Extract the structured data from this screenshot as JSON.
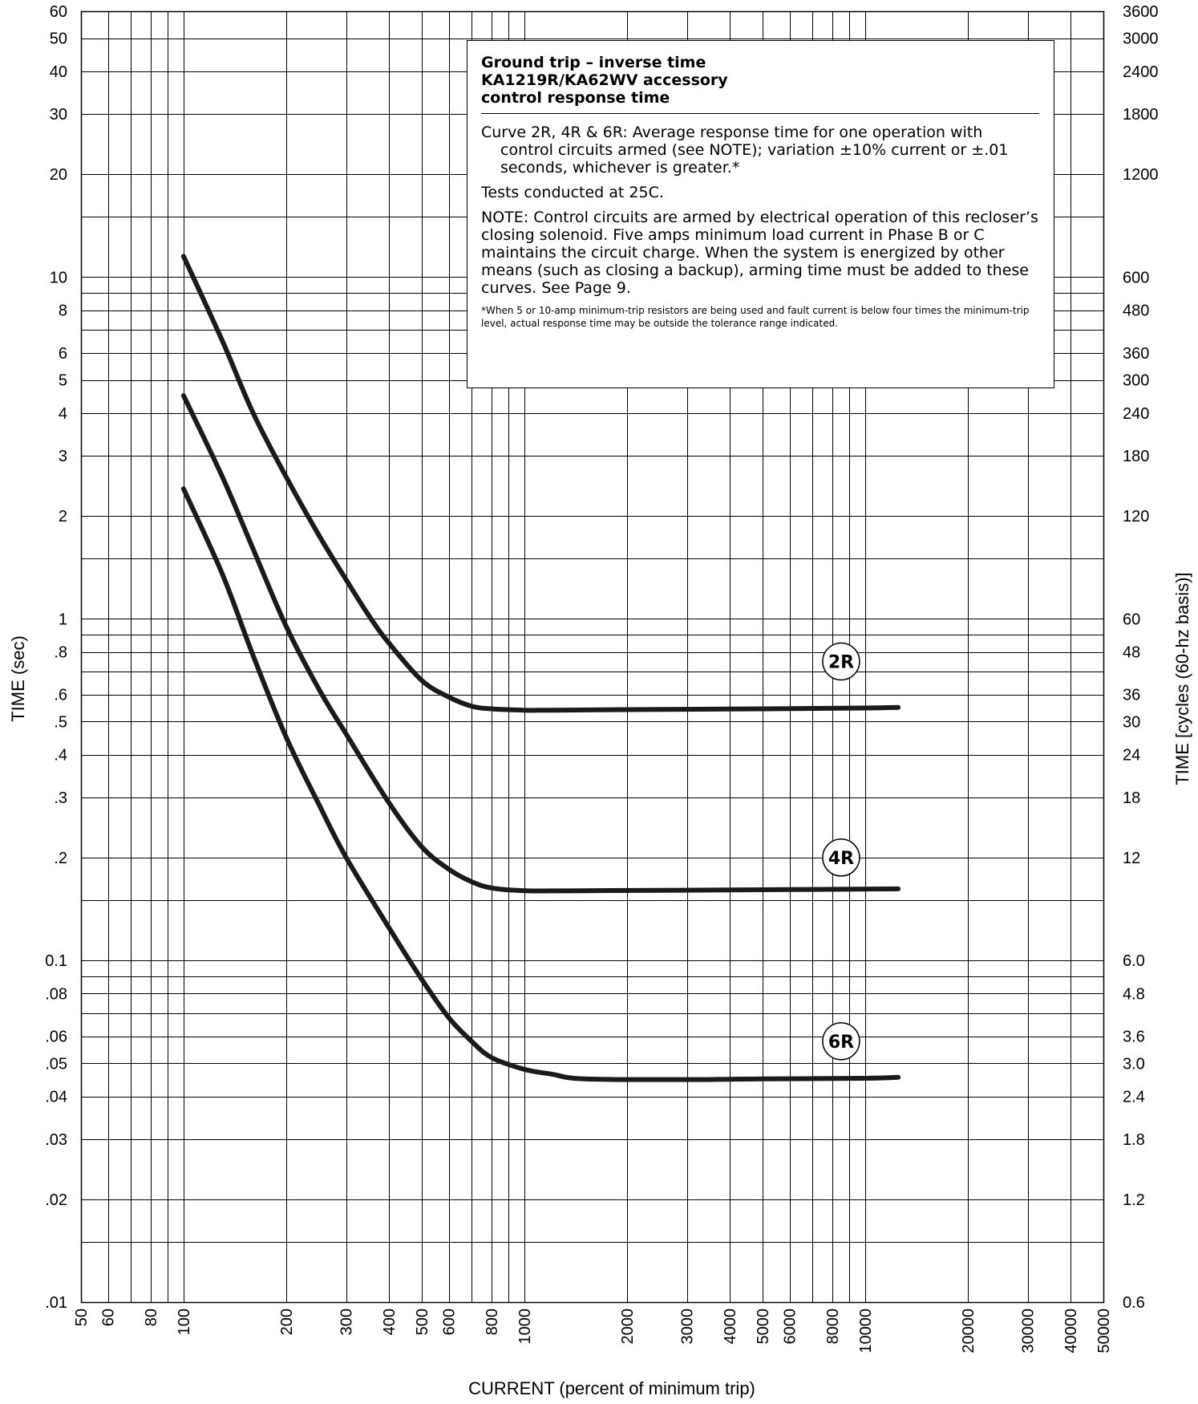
{
  "chart_data": {
    "type": "line",
    "x_scale": "log",
    "y_scale": "log",
    "xlim": [
      50,
      50000
    ],
    "ylim": [
      0.01,
      60
    ],
    "grid": true,
    "xlabel": "CURRENT (percent of minimum trip)",
    "ylabel": "TIME (sec)",
    "ylabel_right": "TIME [cycles (60-hz basis)]",
    "x_ticks": [
      {
        "v": 50,
        "label": "50"
      },
      {
        "v": 60,
        "label": "60"
      },
      {
        "v": 80,
        "label": "80"
      },
      {
        "v": 100,
        "label": "100"
      },
      {
        "v": 200,
        "label": "200"
      },
      {
        "v": 300,
        "label": "300"
      },
      {
        "v": 400,
        "label": "400"
      },
      {
        "v": 500,
        "label": "500"
      },
      {
        "v": 600,
        "label": "600"
      },
      {
        "v": 800,
        "label": "800"
      },
      {
        "v": 1000,
        "label": "1000"
      },
      {
        "v": 2000,
        "label": "2000"
      },
      {
        "v": 3000,
        "label": "3000"
      },
      {
        "v": 4000,
        "label": "4000"
      },
      {
        "v": 5000,
        "label": "5000"
      },
      {
        "v": 6000,
        "label": "6000"
      },
      {
        "v": 8000,
        "label": "8000"
      },
      {
        "v": 10000,
        "label": "10000"
      },
      {
        "v": 20000,
        "label": "20000"
      },
      {
        "v": 30000,
        "label": "30000"
      },
      {
        "v": 40000,
        "label": "40000"
      },
      {
        "v": 50000,
        "label": "50000"
      }
    ],
    "y_ticks_left": [
      {
        "v": 60,
        "label": "60"
      },
      {
        "v": 50,
        "label": "50"
      },
      {
        "v": 40,
        "label": "40"
      },
      {
        "v": 30,
        "label": "30"
      },
      {
        "v": 20,
        "label": "20"
      },
      {
        "v": 10,
        "label": "10"
      },
      {
        "v": 8,
        "label": "8"
      },
      {
        "v": 6,
        "label": "6"
      },
      {
        "v": 5,
        "label": "5"
      },
      {
        "v": 4,
        "label": "4"
      },
      {
        "v": 3,
        "label": "3"
      },
      {
        "v": 2,
        "label": "2"
      },
      {
        "v": 1,
        "label": "1"
      },
      {
        "v": 0.8,
        "label": ".8"
      },
      {
        "v": 0.6,
        "label": ".6"
      },
      {
        "v": 0.5,
        "label": ".5"
      },
      {
        "v": 0.4,
        "label": ".4"
      },
      {
        "v": 0.3,
        "label": ".3"
      },
      {
        "v": 0.2,
        "label": ".2"
      },
      {
        "v": 0.1,
        "label": "0.1"
      },
      {
        "v": 0.08,
        "label": ".08"
      },
      {
        "v": 0.06,
        "label": ".06"
      },
      {
        "v": 0.05,
        "label": ".05"
      },
      {
        "v": 0.04,
        "label": ".04"
      },
      {
        "v": 0.03,
        "label": ".03"
      },
      {
        "v": 0.02,
        "label": ".02"
      },
      {
        "v": 0.01,
        "label": ".01"
      }
    ],
    "y_ticks_right": [
      {
        "v": 60,
        "label": "3600"
      },
      {
        "v": 50,
        "label": "3000"
      },
      {
        "v": 40,
        "label": "2400"
      },
      {
        "v": 30,
        "label": "1800"
      },
      {
        "v": 20,
        "label": "1200"
      },
      {
        "v": 10,
        "label": "600"
      },
      {
        "v": 8,
        "label": "480"
      },
      {
        "v": 6,
        "label": "360"
      },
      {
        "v": 5,
        "label": "300"
      },
      {
        "v": 4,
        "label": "240"
      },
      {
        "v": 3,
        "label": "180"
      },
      {
        "v": 2,
        "label": "120"
      },
      {
        "v": 1,
        "label": "60"
      },
      {
        "v": 0.8,
        "label": "48"
      },
      {
        "v": 0.6,
        "label": "36"
      },
      {
        "v": 0.5,
        "label": "30"
      },
      {
        "v": 0.4,
        "label": "24"
      },
      {
        "v": 0.3,
        "label": "18"
      },
      {
        "v": 0.2,
        "label": "12"
      },
      {
        "v": 0.1,
        "label": "6.0"
      },
      {
        "v": 0.08,
        "label": "4.8"
      },
      {
        "v": 0.06,
        "label": "3.6"
      },
      {
        "v": 0.05,
        "label": "3.0"
      },
      {
        "v": 0.04,
        "label": "2.4"
      },
      {
        "v": 0.03,
        "label": "1.8"
      },
      {
        "v": 0.02,
        "label": "1.2"
      },
      {
        "v": 0.01,
        "label": "0.6"
      }
    ],
    "gridlines_x": [
      50,
      60,
      70,
      80,
      90,
      100,
      200,
      300,
      400,
      500,
      600,
      700,
      800,
      900,
      1000,
      2000,
      3000,
      4000,
      5000,
      6000,
      7000,
      8000,
      9000,
      10000,
      20000,
      30000,
      40000,
      50000
    ],
    "gridlines_y": [
      0.01,
      0.015,
      0.02,
      0.03,
      0.04,
      0.05,
      0.06,
      0.07,
      0.08,
      0.09,
      0.1,
      0.15,
      0.2,
      0.3,
      0.4,
      0.5,
      0.6,
      0.7,
      0.8,
      0.9,
      1,
      1.5,
      2,
      3,
      4,
      5,
      6,
      7,
      8,
      9,
      10,
      15,
      20,
      30,
      40,
      50,
      60
    ],
    "series": [
      {
        "name": "2R",
        "color": "#1a1a1a",
        "points": [
          [
            100,
            11.5
          ],
          [
            130,
            6.5
          ],
          [
            160,
            4.0
          ],
          [
            200,
            2.6
          ],
          [
            250,
            1.75
          ],
          [
            300,
            1.3
          ],
          [
            350,
            1.02
          ],
          [
            400,
            0.85
          ],
          [
            500,
            0.66
          ],
          [
            600,
            0.59
          ],
          [
            700,
            0.555
          ],
          [
            800,
            0.545
          ],
          [
            1000,
            0.54
          ],
          [
            1200,
            0.54
          ],
          [
            2000,
            0.542
          ],
          [
            5000,
            0.545
          ],
          [
            10000,
            0.548
          ],
          [
            12500,
            0.55
          ]
        ]
      },
      {
        "name": "4R",
        "color": "#1a1a1a",
        "points": [
          [
            100,
            4.5
          ],
          [
            130,
            2.6
          ],
          [
            160,
            1.6
          ],
          [
            200,
            0.95
          ],
          [
            250,
            0.62
          ],
          [
            300,
            0.46
          ],
          [
            400,
            0.29
          ],
          [
            500,
            0.215
          ],
          [
            600,
            0.185
          ],
          [
            700,
            0.17
          ],
          [
            800,
            0.163
          ],
          [
            1000,
            0.16
          ],
          [
            1500,
            0.16
          ],
          [
            5000,
            0.161
          ],
          [
            12500,
            0.162
          ]
        ]
      },
      {
        "name": "6R",
        "color": "#1a1a1a",
        "points": [
          [
            100,
            2.4
          ],
          [
            130,
            1.35
          ],
          [
            160,
            0.78
          ],
          [
            200,
            0.45
          ],
          [
            250,
            0.285
          ],
          [
            300,
            0.2
          ],
          [
            400,
            0.125
          ],
          [
            500,
            0.088
          ],
          [
            600,
            0.068
          ],
          [
            700,
            0.058
          ],
          [
            800,
            0.052
          ],
          [
            1000,
            0.048
          ],
          [
            1200,
            0.0465
          ],
          [
            1500,
            0.045
          ],
          [
            3000,
            0.0448
          ],
          [
            5000,
            0.045
          ],
          [
            10000,
            0.0452
          ],
          [
            12500,
            0.0455
          ]
        ]
      }
    ],
    "curve_labels": [
      {
        "text": "2R",
        "x": 8500,
        "y": 0.75
      },
      {
        "text": "4R",
        "x": 8500,
        "y": 0.2
      },
      {
        "text": "6R",
        "x": 8500,
        "y": 0.058
      }
    ]
  },
  "notes": {
    "title_lines": [
      "Ground trip – inverse time",
      "KA1219R/KA62WV accessory",
      "control response time"
    ],
    "curve_note": "Curve 2R, 4R & 6R: Average response time for one operation with control circuits armed (see NOTE); variation ±10% current or ±.01 seconds, whichever is greater.*",
    "tests": "Tests conducted at 25C.",
    "note": "NOTE: Control circuits are armed by electrical operation of this recloser’s closing solenoid. Five amps minimum load current in Phase B or C maintains the circuit charge. When the system is energized by other means (such as closing a backup), arming time must be added to these curves. See Page 9.",
    "footnote": "*When 5 or 10-amp minimum-trip resistors are being used and fault current is below four times the minimum-trip level, actual response time may be outside the tolerance range indicated."
  }
}
